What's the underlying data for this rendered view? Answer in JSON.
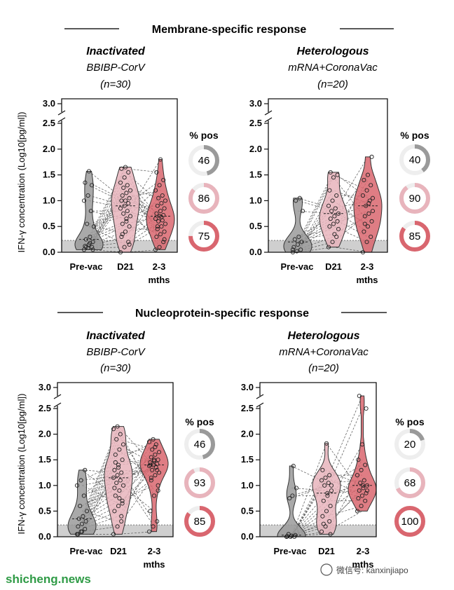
{
  "sections": [
    {
      "title": "Membrane-specific response"
    },
    {
      "title": "Nucleoprotein-specific response"
    }
  ],
  "y_axis_label": "IFN-γ concentration (Log10[pg/ml])",
  "positivity_title": "% pos",
  "watermark": "shicheng.news",
  "wechat_label": "微信号: kanxinjiapo",
  "colors": {
    "prevac": "#9a9a9a",
    "d21": "#e8b4bc",
    "mths": "#d9666f",
    "threshold": "#cfcfcf"
  },
  "chart_data": [
    {
      "type": "violin",
      "section": "Membrane-specific response",
      "title": "Inactivated",
      "subtitle": "BBIBP-CorV",
      "n_label": "(n=30)",
      "categories": [
        "Pre-vac",
        "D21",
        "2-3 mths"
      ],
      "yticks": [
        "0.0",
        "0.5",
        "1.0",
        "1.5",
        "2.0",
        "2.5",
        "3.0"
      ],
      "threshold": 0.23,
      "series": [
        {
          "values": [
            0.05,
            0.08,
            0.1,
            0.12,
            0.15,
            0.2,
            0.25,
            0.3,
            0.5,
            0.55,
            0.8,
            1.0,
            1.1,
            1.3,
            1.35,
            1.57,
            0.05,
            0.1,
            0.18
          ]
        },
        {
          "values": [
            0.0,
            0.1,
            0.2,
            0.3,
            0.4,
            0.5,
            0.55,
            0.6,
            0.7,
            0.75,
            0.8,
            0.85,
            0.9,
            0.95,
            1.0,
            1.0,
            1.05,
            1.1,
            1.15,
            1.2,
            1.25,
            1.3,
            1.35,
            1.45,
            1.55,
            1.62,
            1.65,
            0.15,
            0.35,
            0.65
          ]
        },
        {
          "values": [
            0.05,
            0.1,
            0.2,
            0.3,
            0.35,
            0.4,
            0.45,
            0.5,
            0.55,
            0.6,
            0.62,
            0.65,
            0.7,
            0.72,
            0.75,
            0.8,
            0.85,
            0.9,
            0.95,
            1.0,
            1.05,
            1.1,
            1.2,
            1.3,
            1.4,
            1.55,
            1.8,
            0.25,
            0.5,
            0.68
          ]
        }
      ],
      "positivity": [
        46,
        86,
        75
      ]
    },
    {
      "type": "violin",
      "section": "Membrane-specific response",
      "title": "Heterologous",
      "subtitle": "mRNA+CoronaVac",
      "n_label": "(n=20)",
      "categories": [
        "Pre-vac",
        "D21",
        "2-3 mths"
      ],
      "yticks": [
        "0.0",
        "0.5",
        "1.0",
        "1.5",
        "2.0",
        "2.5",
        "3.0"
      ],
      "threshold": 0.23,
      "series": [
        {
          "values": [
            0.0,
            0.02,
            0.05,
            0.1,
            0.15,
            0.2,
            0.25,
            0.3,
            0.8,
            1.0,
            1.05,
            0.05
          ]
        },
        {
          "values": [
            0.1,
            0.2,
            0.3,
            0.5,
            0.55,
            0.6,
            0.65,
            0.7,
            0.75,
            0.8,
            0.85,
            0.9,
            1.0,
            1.1,
            1.2,
            1.45,
            1.5,
            1.55,
            0.35,
            0.45
          ]
        },
        {
          "values": [
            0.0,
            0.2,
            0.3,
            0.4,
            0.5,
            0.6,
            0.7,
            0.75,
            0.8,
            0.9,
            1.0,
            1.1,
            1.2,
            1.3,
            1.4,
            1.5,
            1.85,
            0.55,
            0.95,
            1.05
          ]
        }
      ],
      "positivity": [
        40,
        90,
        85
      ]
    },
    {
      "type": "violin",
      "section": "Nucleoprotein-specific response",
      "title": "Inactivated",
      "subtitle": "BBIBP-CorV",
      "n_label": "(n=30)",
      "categories": [
        "Pre-vac",
        "D21",
        "2-3 mths"
      ],
      "yticks": [
        "0.0",
        "0.5",
        "1.0",
        "1.5",
        "2.0",
        "2.5",
        "3.0"
      ],
      "threshold": 0.23,
      "series": [
        {
          "values": [
            0.05,
            0.1,
            0.15,
            0.2,
            0.25,
            0.3,
            0.35,
            0.4,
            0.5,
            0.6,
            0.8,
            1.0,
            1.1,
            1.3,
            0.05,
            0.1
          ]
        },
        {
          "values": [
            0.05,
            0.2,
            0.4,
            0.5,
            0.6,
            0.7,
            0.8,
            0.9,
            1.0,
            1.05,
            1.1,
            1.15,
            1.2,
            1.25,
            1.3,
            1.4,
            1.5,
            1.6,
            1.7,
            1.8,
            1.9,
            2.0,
            2.1,
            2.15,
            0.3,
            0.95,
            1.35,
            0.65,
            1.45,
            0.75
          ]
        },
        {
          "values": [
            0.1,
            0.2,
            0.3,
            0.5,
            0.8,
            1.0,
            1.1,
            1.2,
            1.25,
            1.3,
            1.35,
            1.38,
            1.4,
            1.42,
            1.45,
            1.48,
            1.5,
            1.55,
            1.6,
            1.65,
            1.7,
            1.8,
            1.85,
            1.9,
            1.3,
            1.4,
            1.5,
            0.9,
            1.15,
            1.75
          ]
        }
      ],
      "positivity": [
        46,
        93,
        85
      ]
    },
    {
      "type": "violin",
      "section": "Nucleoprotein-specific response",
      "title": "Heterologous",
      "subtitle": "mRNA+CoronaVac",
      "n_label": "(n=20)",
      "categories": [
        "Pre-vac",
        "D21",
        "2-3 mths"
      ],
      "yticks": [
        "0.0",
        "0.5",
        "1.0",
        "1.5",
        "2.0",
        "2.5",
        "3.0"
      ],
      "threshold": 0.23,
      "series": [
        {
          "values": [
            0.0,
            0.0,
            0.0,
            0.01,
            0.02,
            0.03,
            0.05,
            0.8,
            0.95,
            0.75,
            1.38,
            0.0
          ]
        },
        {
          "values": [
            0.1,
            0.2,
            0.3,
            0.4,
            0.5,
            0.6,
            0.7,
            0.8,
            0.9,
            1.0,
            1.05,
            1.1,
            1.15,
            1.2,
            1.3,
            1.82,
            0.05,
            0.25,
            0.85,
            1.0
          ]
        },
        {
          "values": [
            0.5,
            0.6,
            0.7,
            0.75,
            0.8,
            0.85,
            0.9,
            0.95,
            1.0,
            1.05,
            1.1,
            1.2,
            1.3,
            1.4,
            1.5,
            1.8,
            2.5,
            2.8,
            1.0,
            0.9
          ]
        }
      ],
      "positivity": [
        20,
        68,
        100
      ]
    }
  ]
}
